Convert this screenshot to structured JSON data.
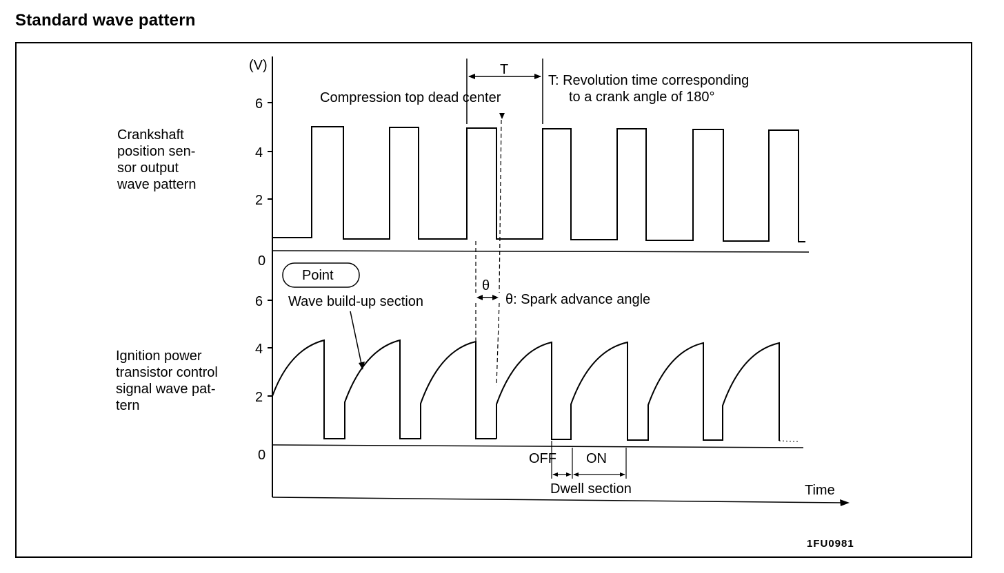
{
  "title": "Standard wave pattern",
  "unit_label": "(V)",
  "period_symbol": "T",
  "period_note": {
    "line1": "T:  Revolution time corresponding",
    "line2": "to a crank angle of 180°"
  },
  "compression_label": "Compression top dead center",
  "crank_label": [
    "Crankshaft",
    "position sen-",
    "sor output",
    "wave pattern"
  ],
  "crank_ticks": [
    "6",
    "4",
    "2",
    "0"
  ],
  "point_label": "Point",
  "buildup_label": "Wave build-up section",
  "theta_symbol": "θ",
  "theta_note": "θ:  Spark advance angle",
  "ignition_label": [
    "Ignition power",
    "transistor control",
    "signal wave pat-",
    "tern"
  ],
  "ignition_ticks": [
    "6",
    "4",
    "2",
    "0"
  ],
  "off_label": "OFF",
  "on_label": "ON",
  "dwell_label": "Dwell section",
  "time_label": "Time",
  "figure_code": "1FU0981"
}
